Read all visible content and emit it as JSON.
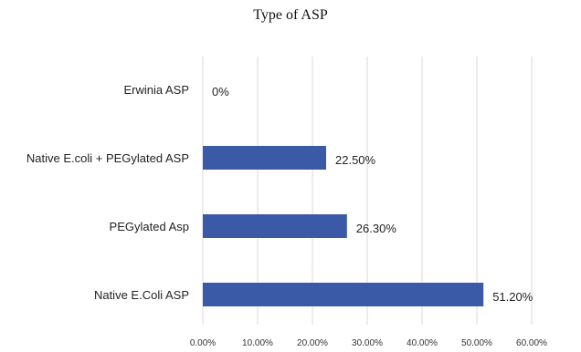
{
  "chart_data": {
    "type": "bar",
    "orientation": "horizontal",
    "title": "Type of ASP",
    "categories": [
      "Erwinia ASP",
      "Native E.coli + PEGylated ASP",
      "PEGylated Asp",
      "Native E.Coli ASP"
    ],
    "values": [
      0,
      22.5,
      26.3,
      51.2
    ],
    "value_labels": [
      "0%",
      "22.50%",
      "26.30%",
      "51.20%"
    ],
    "xlim": [
      0,
      60
    ],
    "x_ticks": [
      "0.00%",
      "10.00%",
      "20.00%",
      "30.00%",
      "40.00%",
      "50.00%",
      "60.00%"
    ],
    "grid": true,
    "bar_color": "#3a5aa8",
    "xlabel": "",
    "ylabel": ""
  }
}
